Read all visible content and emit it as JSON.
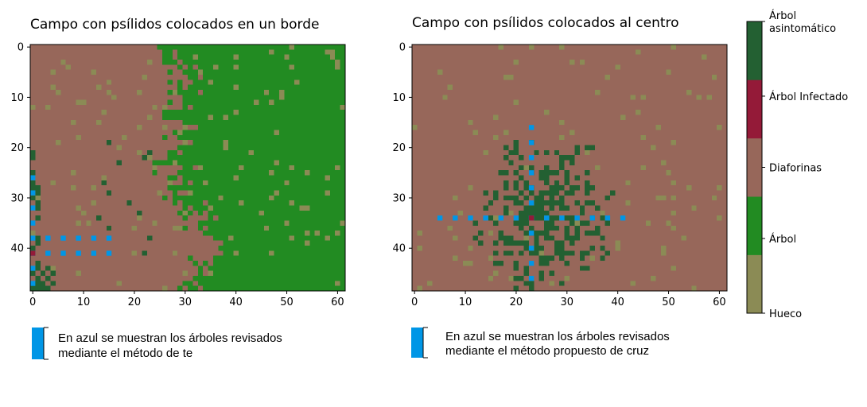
{
  "colors": {
    "hueco": "#8b8b55",
    "arbol": "#228b22",
    "diaforinas": "#97675a",
    "infectado": "#941a38",
    "asintomatico": "#236032",
    "revisado": "#0096e6"
  },
  "colorbar": {
    "labels": [
      "Hueco",
      "Árbol",
      "Diaforinas",
      "Árbol Infectado",
      "Árbol asintomático"
    ]
  },
  "chart_data": [
    {
      "type": "heatmap",
      "title": "Campo con psílidos colocados en un borde",
      "xlabel": "",
      "ylabel": "",
      "grid_size": [
        62,
        49
      ],
      "xlim": [
        0,
        61
      ],
      "ylim": [
        49,
        0
      ],
      "xticks": [
        0,
        10,
        20,
        30,
        40,
        50,
        60
      ],
      "yticks": [
        0,
        10,
        20,
        30,
        40
      ],
      "pattern": "Diaforinas cover columns 0-28 on the left; Árbol (healthy trees) fill the right side beyond an irregular front near columns 26-36; scattered Hueco cells throughout; Árbol asintomático cells scattered near the left edge around rows 20-49; one Árbol Infectado near (0,41)",
      "inspected_trees": {
        "method": "te",
        "vertical": {
          "col": 0,
          "rows": [
            26,
            29,
            32,
            35,
            38,
            41,
            44,
            47
          ]
        },
        "horizontal": {
          "row": 38,
          "cols": [
            3,
            6,
            9,
            12,
            15
          ]
        },
        "stem": {
          "row": 41,
          "cols": [
            3,
            6,
            9,
            12,
            15
          ]
        }
      },
      "infected": [
        [
          0,
          41
        ]
      ],
      "note": "En azul se muestran los árboles revisados mediante el método de te"
    },
    {
      "type": "heatmap",
      "title": "Campo con psílidos colocados al centro",
      "xlabel": "",
      "ylabel": "",
      "grid_size": [
        62,
        49
      ],
      "xlim": [
        0,
        61
      ],
      "ylim": [
        49,
        0
      ],
      "xticks": [
        0,
        10,
        20,
        30,
        40,
        50,
        60
      ],
      "yticks": [
        0,
        10,
        20,
        30,
        40
      ],
      "pattern": "Diaforinas across the whole field; dense cluster of Árbol asintomático centred near (23,34) spreading over rows 10-49; scattered Hueco cells; one Árbol Infectado at (23,34)",
      "inspected_trees": {
        "method": "cruz",
        "vertical": {
          "col": 23,
          "rows": [
            16,
            19,
            22,
            25,
            28,
            31,
            34,
            37,
            40,
            43,
            46,
            49
          ]
        },
        "horizontal": {
          "row": 34,
          "cols": [
            5,
            8,
            11,
            14,
            17,
            20,
            23,
            26,
            29,
            32,
            35,
            38,
            41
          ]
        }
      },
      "infected": [
        [
          23,
          34
        ]
      ],
      "note": "En azul se muestran los árboles revisados mediante el método propuesto de cruz"
    }
  ],
  "notes": {
    "left_line1": "En azul se muestran los árboles revisados",
    "left_line2": "mediante el método de te",
    "right_line1": "En azul se muestran los árboles revisados",
    "right_line2": "mediante el método propuesto de cruz"
  }
}
